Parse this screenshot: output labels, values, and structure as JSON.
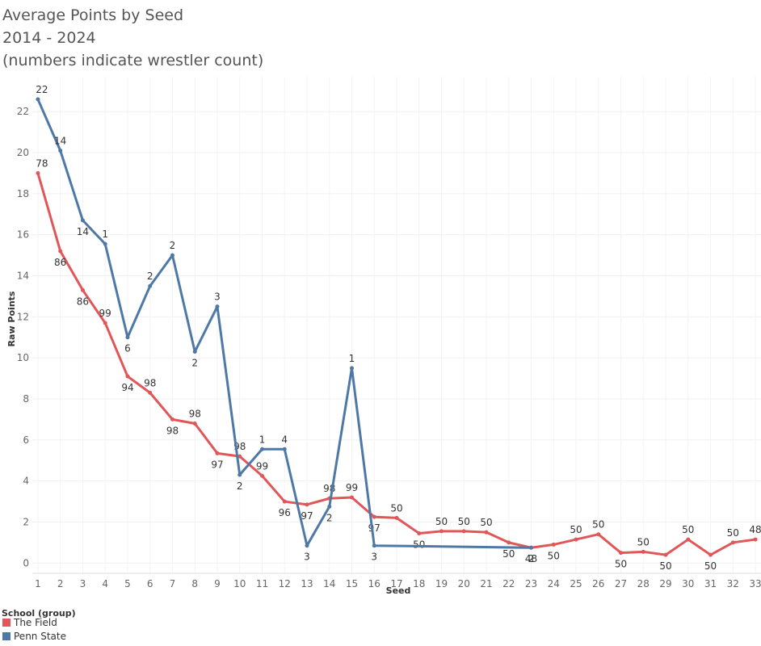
{
  "chart_data": {
    "type": "line",
    "title": [
      "Average Points by Seed",
      "2014 - 2024",
      "(numbers indicate wrestler count)"
    ],
    "x_label": "Seed",
    "y_label": "Raw Points",
    "xlim": [
      0.75,
      33.25
    ],
    "ylim": [
      -0.5,
      23.7
    ],
    "xticks": [
      1,
      2,
      3,
      4,
      5,
      6,
      7,
      8,
      9,
      10,
      11,
      12,
      13,
      14,
      15,
      16,
      17,
      18,
      19,
      20,
      21,
      22,
      23,
      24,
      25,
      26,
      27,
      28,
      29,
      30,
      31,
      32,
      33
    ],
    "yticks": [
      0,
      2,
      4,
      6,
      8,
      10,
      12,
      14,
      16,
      18,
      20,
      22
    ],
    "grid": true,
    "legend_title": "School (group)",
    "series": [
      {
        "name": "The Field",
        "color": "#e15759",
        "x": [
          1,
          2,
          3,
          4,
          5,
          6,
          7,
          8,
          9,
          10,
          11,
          12,
          13,
          14,
          15,
          16,
          17,
          18,
          19,
          20,
          21,
          22,
          23,
          24,
          25,
          26,
          27,
          28,
          29,
          30,
          31,
          32,
          33
        ],
        "values": [
          19.0,
          15.2,
          13.3,
          11.7,
          9.1,
          8.3,
          7.0,
          6.8,
          5.35,
          5.2,
          4.25,
          3.0,
          2.85,
          3.15,
          3.2,
          2.25,
          2.2,
          1.45,
          1.55,
          1.55,
          1.5,
          1.0,
          0.75,
          0.9,
          1.15,
          1.4,
          0.5,
          0.55,
          0.4,
          1.15,
          0.4,
          1.0,
          1.15
        ],
        "counts": [
          78,
          86,
          86,
          99,
          94,
          98,
          98,
          98,
          97,
          98,
          99,
          96,
          97,
          98,
          99,
          97,
          50,
          50,
          50,
          50,
          50,
          50,
          48,
          50,
          50,
          50,
          50,
          50,
          50,
          50,
          50,
          50,
          48
        ]
      },
      {
        "name": "Penn State",
        "color": "#4e79a7",
        "x": [
          1,
          2,
          3,
          4,
          5,
          6,
          7,
          8,
          9,
          10,
          11,
          12,
          13,
          14,
          15,
          16,
          23
        ],
        "values": [
          22.6,
          20.1,
          16.7,
          15.55,
          11.0,
          13.5,
          15.0,
          10.3,
          12.5,
          4.3,
          5.55,
          5.55,
          0.85,
          2.75,
          9.5,
          0.85,
          0.75
        ],
        "counts": [
          22,
          14,
          14,
          1,
          6,
          2,
          2,
          2,
          3,
          2,
          1,
          4,
          3,
          2,
          1,
          3,
          2
        ]
      }
    ]
  }
}
